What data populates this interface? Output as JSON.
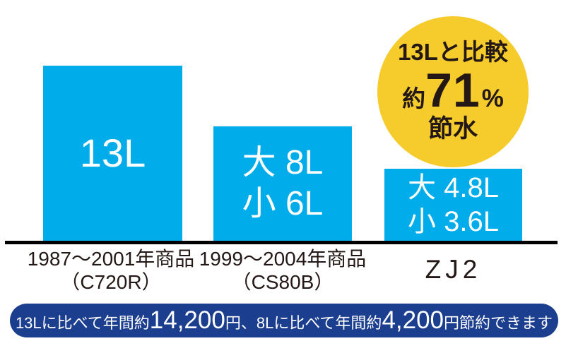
{
  "colors": {
    "bar_blue": "#00ACE9",
    "banner_navy": "#1B3E8F",
    "badge_yellow": "#F6CB2C",
    "text_dark": "#231815",
    "bar_text_white": "#FFFFFF",
    "baseline_black": "#000000"
  },
  "chart_data": {
    "type": "bar",
    "unit": "L per flush",
    "categories": [
      "1987〜2001年商品（C720R）",
      "1999〜2004年商品（CS80B）",
      "ZJ2"
    ],
    "series": [
      {
        "name": "大",
        "values": [
          13,
          8,
          4.8
        ]
      },
      {
        "name": "小",
        "values": [
          13,
          6,
          3.6
        ]
      }
    ],
    "bar_value_labels": [
      [
        "13L"
      ],
      [
        "大 8L",
        "小 6L"
      ],
      [
        "大 4.8L",
        "小 3.6L"
      ]
    ],
    "annotation_badge": "13Lと比較 約71% 節水",
    "footnote": "13Lに比べて年間約14,200円、8Lに比べて年間約4,200円節約できます",
    "xlabel": "",
    "ylabel": "",
    "grid": false,
    "legend": false
  },
  "bars": [
    {
      "lines": [
        "13L"
      ],
      "caption": [
        "1987〜2001年商品",
        "（C720R）"
      ]
    },
    {
      "lines": [
        "大 8L",
        "小 6L"
      ],
      "caption": [
        "1999〜2004年商品",
        "（CS80B）"
      ]
    },
    {
      "lines": [
        "大 4.8L",
        "小 3.6L"
      ],
      "caption": [
        "ZJ2"
      ]
    }
  ],
  "badge": {
    "line1": "13Lと比較",
    "approx": "約",
    "value": "71",
    "percent": "%",
    "line3": "節水"
  },
  "banner": {
    "segments": [
      {
        "text": "13Lに比べて年間約",
        "size": "small"
      },
      {
        "text": "14,200",
        "size": "large"
      },
      {
        "text": "円、",
        "size": "small"
      },
      {
        "text": "8Lに比べて年間約",
        "size": "small"
      },
      {
        "text": "4,200",
        "size": "large"
      },
      {
        "text": "円節約できます",
        "size": "small"
      }
    ]
  }
}
